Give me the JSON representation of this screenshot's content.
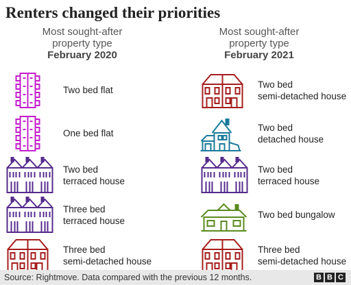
{
  "title": "Renters changed their priorities",
  "chart_data": {
    "type": "table",
    "columns": [
      {
        "heading_line1": "Most sought-after",
        "heading_line2": "property type",
        "period": "February 2020",
        "items": [
          {
            "rank": 1,
            "lines": [
              "Two bed flat"
            ],
            "icon": "flat-icon",
            "color": "#c31ecb"
          },
          {
            "rank": 2,
            "lines": [
              "One bed flat"
            ],
            "icon": "flat-icon",
            "color": "#c31ecb"
          },
          {
            "rank": 3,
            "lines": [
              "Two bed",
              "terraced house"
            ],
            "icon": "terraced-house-icon",
            "color": "#552b8c"
          },
          {
            "rank": 4,
            "lines": [
              "Three bed",
              "terraced house"
            ],
            "icon": "terraced-house-icon",
            "color": "#552b8c"
          },
          {
            "rank": 5,
            "lines": [
              "Three bed",
              "semi-detached house"
            ],
            "icon": "semi-detached-house-icon",
            "color": "#a51d1d"
          }
        ]
      },
      {
        "heading_line1": "Most sought-after",
        "heading_line2": "property type",
        "period": "February 2021",
        "items": [
          {
            "rank": 1,
            "lines": [
              "Two bed",
              "semi-detached house"
            ],
            "icon": "semi-detached-house-icon",
            "color": "#a51d1d"
          },
          {
            "rank": 2,
            "lines": [
              "Two bed",
              "detached house"
            ],
            "icon": "detached-house-icon",
            "color": "#1a7a9b"
          },
          {
            "rank": 3,
            "lines": [
              "Two bed",
              "terraced house"
            ],
            "icon": "terraced-house-icon",
            "color": "#552b8c"
          },
          {
            "rank": 4,
            "lines": [
              "Two bed bungalow"
            ],
            "icon": "bungalow-icon",
            "color": "#5a8a1e"
          },
          {
            "rank": 5,
            "lines": [
              "Three bed",
              "semi-detached house"
            ],
            "icon": "semi-detached-house-icon",
            "color": "#a51d1d"
          }
        ]
      }
    ]
  },
  "source": "Source: Rightmove. Data compared with the previous 12 months.",
  "brand": [
    "B",
    "B",
    "C"
  ]
}
